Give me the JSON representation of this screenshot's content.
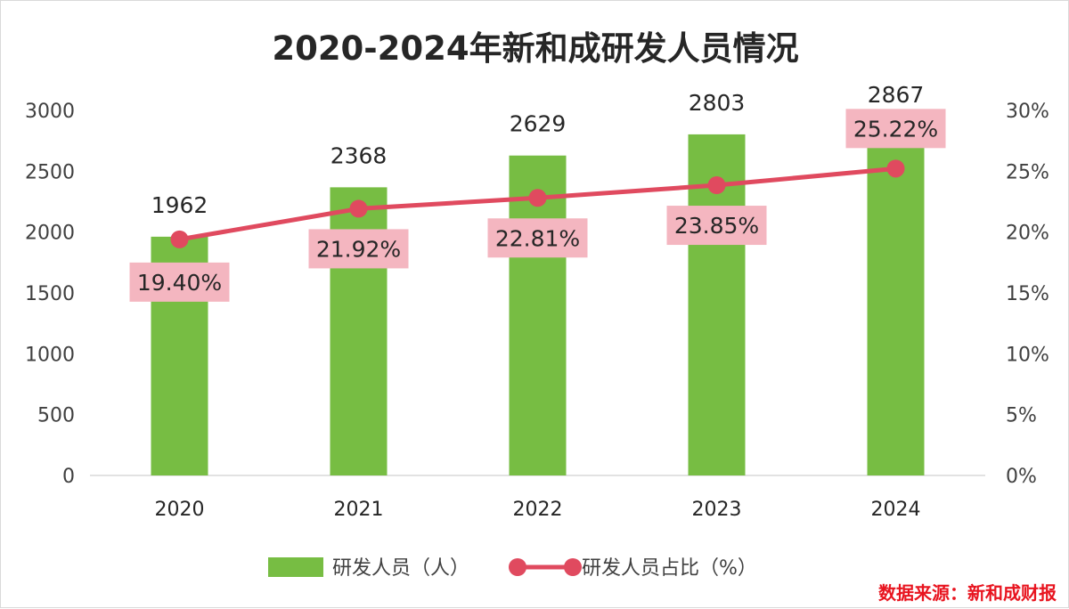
{
  "chart_data": {
    "type": "bar",
    "title": "2020-2024年新和成研发人员情况",
    "categories": [
      "2020",
      "2021",
      "2022",
      "2023",
      "2024"
    ],
    "series": [
      {
        "name": "研发人员（人）",
        "type": "bar",
        "axis": "left",
        "color": "#77bd43",
        "values": [
          1962,
          2368,
          2629,
          2803,
          2867
        ],
        "labels": [
          "1962",
          "2368",
          "2629",
          "2803",
          "2867"
        ]
      },
      {
        "name": "研发人员占比（%）",
        "type": "line",
        "axis": "right",
        "color": "#e04a5f",
        "values": [
          19.4,
          21.92,
          22.81,
          23.85,
          25.22
        ],
        "labels": [
          "19.40%",
          "21.92%",
          "22.81%",
          "23.85%",
          "25.22%"
        ]
      }
    ],
    "ylim_left": [
      0,
      3000
    ],
    "yticks_left": [
      "0",
      "500",
      "1000",
      "1500",
      "2000",
      "2500",
      "3000"
    ],
    "ylim_right": [
      0,
      30
    ],
    "yticks_right": [
      "0%",
      "5%",
      "10%",
      "15%",
      "20%",
      "25%",
      "30%"
    ],
    "grid": false,
    "legend_position": "bottom",
    "source": "数据来源：新和成财报",
    "label_box_color": "#f4b6c0"
  }
}
